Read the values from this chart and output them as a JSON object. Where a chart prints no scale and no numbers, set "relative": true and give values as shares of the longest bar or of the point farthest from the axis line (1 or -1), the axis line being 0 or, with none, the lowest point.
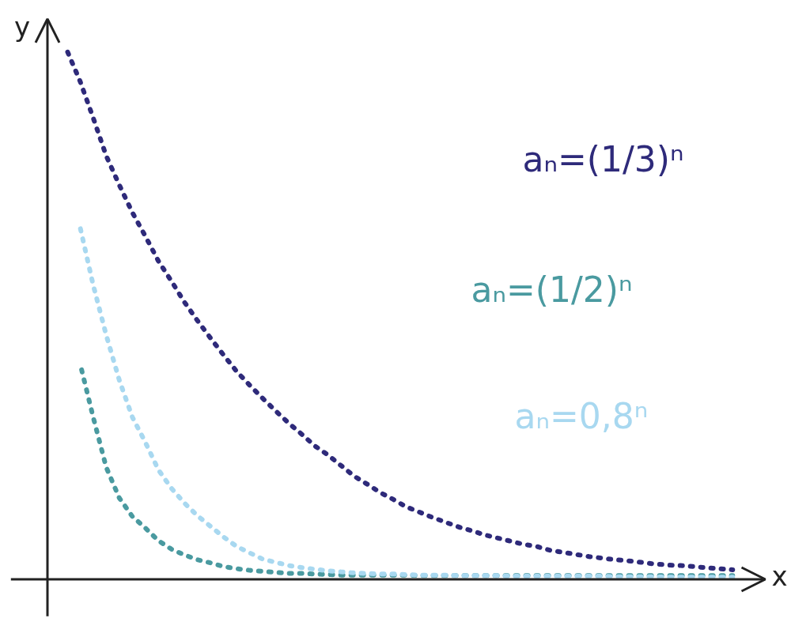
{
  "chart_data": {
    "type": "line",
    "relative": true,
    "xlabel": "x",
    "ylabel": "y",
    "tick_labels": false,
    "grid": false,
    "line_style": "dotted",
    "categories": [
      null,
      null,
      null,
      null,
      null,
      null,
      null,
      null,
      null,
      null,
      null,
      null,
      null,
      null,
      null,
      null,
      null,
      null,
      null,
      null,
      null,
      null,
      null,
      null,
      null,
      null,
      null,
      null,
      null,
      null,
      null,
      null,
      null,
      null,
      null,
      null,
      null,
      null,
      null,
      null,
      null,
      null,
      null,
      null,
      null,
      null,
      null,
      null,
      null,
      null,
      null,
      null
    ],
    "series": [
      {
        "name": "aₙ=(1/3)ⁿ",
        "color": "#2e2a7a",
        "values": [
          1.0,
          0.942,
          0.873,
          0.801,
          0.746,
          0.694,
          0.649,
          0.602,
          0.564,
          0.524,
          0.489,
          0.456,
          0.424,
          0.393,
          0.367,
          0.342,
          0.318,
          0.295,
          0.274,
          0.252,
          0.235,
          0.215,
          0.195,
          0.18,
          0.164,
          0.151,
          0.137,
          0.127,
          0.117,
          0.108,
          0.099,
          0.092,
          0.084,
          0.078,
          0.072,
          0.066,
          0.062,
          0.055,
          0.051,
          0.047,
          0.043,
          0.04,
          0.037,
          0.035,
          0.032,
          0.029,
          0.027,
          0.026,
          0.024,
          0.022,
          0.02,
          0.018
        ]
      },
      {
        "name": "aₙ=(1/2)ⁿ",
        "color": "#4a9aa0",
        "values": [
          null,
          0.408,
          0.307,
          0.212,
          0.154,
          0.119,
          0.097,
          0.073,
          0.057,
          0.046,
          0.037,
          0.031,
          0.024,
          0.02,
          0.017,
          0.015,
          0.013,
          0.011,
          0.011,
          0.01,
          0.009,
          0.008,
          0.008,
          0.008,
          0.008,
          0.008,
          0.008,
          0.007,
          0.007,
          0.007,
          0.007,
          0.007,
          0.007,
          0.007,
          0.007,
          0.007,
          0.007,
          0.007,
          0.007,
          0.007,
          0.007,
          0.007,
          0.007,
          0.007,
          0.007,
          0.007,
          0.007,
          0.007,
          0.007,
          0.007,
          0.007,
          0.007
        ]
      },
      {
        "name": "aₙ=0,8ⁿ",
        "color": "#a8d8f0",
        "values": [
          null,
          0.666,
          0.557,
          0.462,
          0.377,
          0.307,
          0.259,
          0.207,
          0.172,
          0.144,
          0.12,
          0.1,
          0.08,
          0.062,
          0.05,
          0.038,
          0.032,
          0.026,
          0.022,
          0.019,
          0.016,
          0.014,
          0.012,
          0.011,
          0.01,
          0.01,
          0.009,
          0.008,
          0.008,
          0.008,
          0.007,
          0.007,
          0.007,
          0.007,
          0.006,
          0.006,
          0.006,
          0.006,
          0.006,
          0.006,
          0.006,
          0.006,
          0.005,
          0.005,
          0.005,
          0.005,
          0.004,
          0.004,
          0.004,
          0.004,
          0.004,
          0.004
        ]
      }
    ]
  }
}
